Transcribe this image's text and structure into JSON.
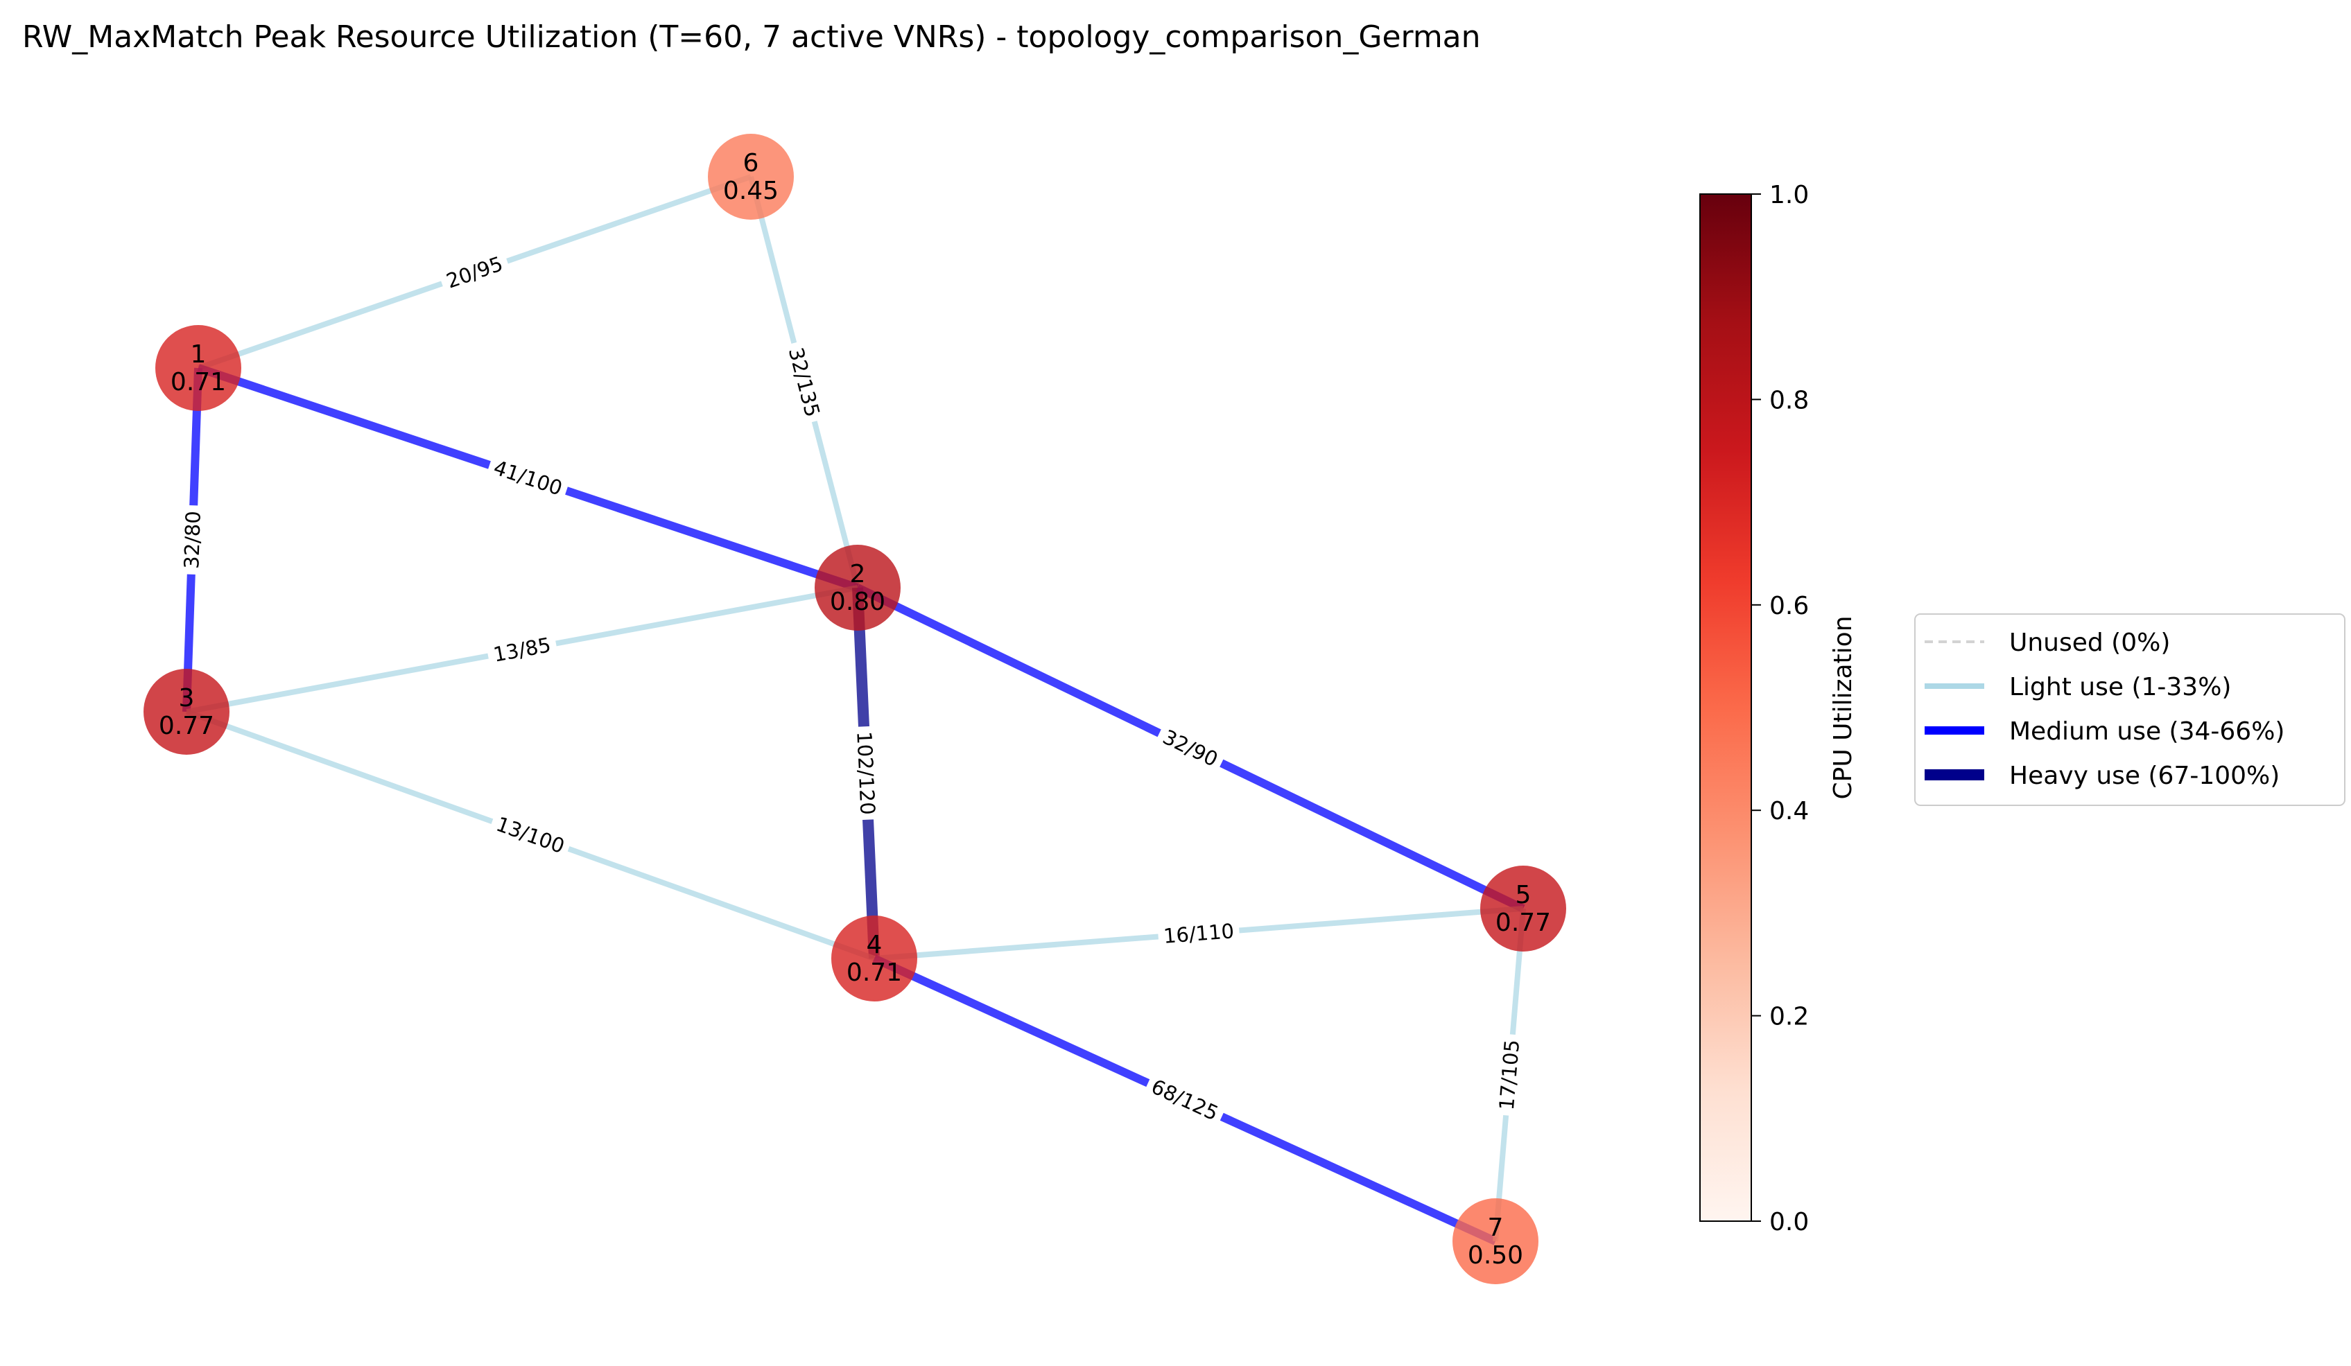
{
  "title": "RW_MaxMatch Peak Resource Utilization (T=60, 7 active VNRs) - topology_comparison_German",
  "nodes": [
    {
      "id": "1",
      "cpu": 0.71,
      "label": "0.71"
    },
    {
      "id": "2",
      "cpu": 0.8,
      "label": "0.80"
    },
    {
      "id": "3",
      "cpu": 0.77,
      "label": "0.77"
    },
    {
      "id": "4",
      "cpu": 0.71,
      "label": "0.71"
    },
    {
      "id": "5",
      "cpu": 0.77,
      "label": "0.77"
    },
    {
      "id": "6",
      "cpu": 0.45,
      "label": "0.45"
    },
    {
      "id": "7",
      "cpu": 0.5,
      "label": "0.50"
    }
  ],
  "edges": [
    {
      "source": "1",
      "target": "6",
      "used": 20,
      "capacity": 95,
      "label": "20/95",
      "category": "light"
    },
    {
      "source": "6",
      "target": "2",
      "used": 32,
      "capacity": 135,
      "label": "32/135",
      "category": "light"
    },
    {
      "source": "1",
      "target": "2",
      "used": 41,
      "capacity": 100,
      "label": "41/100",
      "category": "medium"
    },
    {
      "source": "1",
      "target": "3",
      "used": 32,
      "capacity": 80,
      "label": "32/80",
      "category": "medium"
    },
    {
      "source": "3",
      "target": "2",
      "used": 13,
      "capacity": 85,
      "label": "13/85",
      "category": "light"
    },
    {
      "source": "2",
      "target": "4",
      "used": 102,
      "capacity": 120,
      "label": "102/120",
      "category": "heavy"
    },
    {
      "source": "2",
      "target": "5",
      "used": 32,
      "capacity": 90,
      "label": "32/90",
      "category": "medium"
    },
    {
      "source": "3",
      "target": "4",
      "used": 13,
      "capacity": 100,
      "label": "13/100",
      "category": "light"
    },
    {
      "source": "4",
      "target": "5",
      "used": 16,
      "capacity": 110,
      "label": "16/110",
      "category": "light"
    },
    {
      "source": "4",
      "target": "7",
      "used": 68,
      "capacity": 125,
      "label": "68/125",
      "category": "medium"
    },
    {
      "source": "5",
      "target": "7",
      "used": 17,
      "capacity": 105,
      "label": "17/105",
      "category": "light"
    }
  ],
  "edge_styles": {
    "unused": {
      "color": "#d3d3d3",
      "dashed": true
    },
    "light": {
      "color": "#add8e6"
    },
    "medium": {
      "color": "#0000ff"
    },
    "heavy": {
      "color": "#00008b"
    }
  },
  "colorbar": {
    "label": "CPU Utilization",
    "range": [
      0.0,
      1.0
    ],
    "ticks": [
      "0.0",
      "0.2",
      "0.4",
      "0.6",
      "0.8",
      "1.0"
    ],
    "colormap": "Reds"
  },
  "legend": {
    "placement": "right",
    "items": [
      {
        "key": "unused",
        "label": "Unused (0%)"
      },
      {
        "key": "light",
        "label": "Light use (1-33%)"
      },
      {
        "key": "medium",
        "label": "Medium use (34-66%)"
      },
      {
        "key": "heavy",
        "label": "Heavy use (67-100%)"
      }
    ]
  }
}
